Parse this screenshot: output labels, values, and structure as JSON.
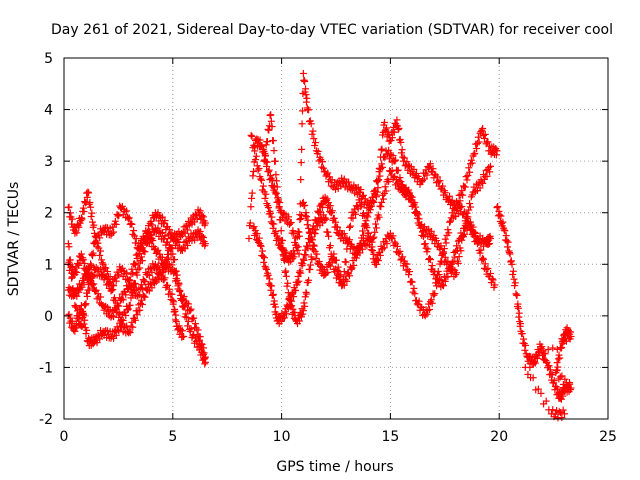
{
  "chart_data": {
    "type": "scatter",
    "title": "Day 261 of 2021, Sidereal Day-to-day VTEC variation (SDTVAR) for receiver cool",
    "xlabel": "GPS time / hours",
    "ylabel": "SDTVAR / TECUs",
    "xlim": [
      0,
      25
    ],
    "ylim": [
      -2,
      5
    ],
    "xticks": [
      "0",
      "5",
      "10",
      "15",
      "20",
      "25"
    ],
    "yticks": [
      "-2",
      "-1",
      "0",
      "1",
      "2",
      "3",
      "4",
      "5"
    ],
    "grid": true,
    "marker": "plus",
    "color": "#ff0000",
    "series": [
      {
        "name": "track-1",
        "points": [
          [
            0.2,
            2.1
          ],
          [
            0.5,
            1.6
          ],
          [
            0.8,
            1.9
          ],
          [
            1.1,
            2.4
          ],
          [
            1.4,
            1.6
          ],
          [
            1.8,
            1.0
          ],
          [
            2.2,
            0.6
          ],
          [
            2.6,
            0.9
          ],
          [
            3.0,
            0.7
          ],
          [
            3.4,
            1.2
          ],
          [
            3.8,
            1.6
          ],
          [
            4.2,
            1.3
          ],
          [
            4.6,
            1.0
          ],
          [
            5.0,
            0.9
          ],
          [
            5.4,
            0.4
          ],
          [
            5.8,
            0.1
          ],
          [
            6.2,
            -0.4
          ],
          [
            6.5,
            -0.8
          ]
        ]
      },
      {
        "name": "track-2",
        "points": [
          [
            0.2,
            1.4
          ],
          [
            0.5,
            0.2
          ],
          [
            0.8,
            -0.2
          ],
          [
            1.1,
            0.5
          ],
          [
            1.4,
            0.9
          ],
          [
            1.8,
            0.8
          ],
          [
            2.2,
            0.5
          ],
          [
            2.6,
            -0.1
          ],
          [
            3.0,
            0.2
          ],
          [
            3.4,
            0.9
          ],
          [
            3.8,
            1.4
          ],
          [
            4.2,
            1.7
          ],
          [
            4.6,
            1.5
          ],
          [
            5.0,
            1.2
          ],
          [
            5.4,
            0.3
          ],
          [
            5.8,
            -0.3
          ],
          [
            6.2,
            -0.6
          ],
          [
            6.5,
            -0.9
          ]
        ]
      },
      {
        "name": "track-3",
        "points": [
          [
            0.2,
            0.0
          ],
          [
            0.5,
            -0.3
          ],
          [
            0.8,
            0.2
          ],
          [
            1.1,
            -0.5
          ],
          [
            1.4,
            -0.5
          ],
          [
            1.8,
            -0.3
          ],
          [
            2.2,
            -0.4
          ],
          [
            2.6,
            -0.2
          ],
          [
            3.0,
            -0.3
          ],
          [
            3.4,
            0.1
          ],
          [
            3.8,
            0.5
          ],
          [
            4.2,
            0.7
          ],
          [
            4.6,
            0.9
          ],
          [
            5.0,
            1.5
          ],
          [
            5.4,
            1.3
          ],
          [
            5.8,
            1.5
          ],
          [
            6.2,
            1.6
          ],
          [
            6.5,
            1.4
          ]
        ]
      },
      {
        "name": "track-4",
        "points": [
          [
            0.2,
            1.0
          ],
          [
            0.5,
            0.8
          ],
          [
            0.8,
            1.2
          ],
          [
            1.1,
            0.7
          ],
          [
            1.4,
            1.4
          ],
          [
            1.8,
            1.7
          ],
          [
            2.2,
            1.6
          ],
          [
            2.6,
            2.1
          ],
          [
            3.0,
            1.9
          ],
          [
            3.4,
            1.3
          ],
          [
            3.8,
            1.6
          ],
          [
            4.2,
            2.0
          ],
          [
            4.6,
            1.8
          ],
          [
            5.0,
            1.5
          ],
          [
            5.4,
            1.6
          ],
          [
            5.8,
            1.8
          ],
          [
            6.2,
            2.0
          ],
          [
            6.5,
            1.8
          ]
        ]
      },
      {
        "name": "track-5",
        "points": [
          [
            0.2,
            0.5
          ],
          [
            0.5,
            0.4
          ],
          [
            0.8,
            0.6
          ],
          [
            1.1,
            0.9
          ],
          [
            1.4,
            0.5
          ],
          [
            1.8,
            0.2
          ],
          [
            2.2,
            0.0
          ],
          [
            2.6,
            0.3
          ],
          [
            3.0,
            0.6
          ],
          [
            3.4,
            0.4
          ],
          [
            3.8,
            0.8
          ],
          [
            4.2,
            1.0
          ],
          [
            4.6,
            0.7
          ],
          [
            5.0,
            0.3
          ],
          [
            5.2,
            -0.2
          ],
          [
            5.5,
            -0.4
          ]
        ]
      },
      {
        "name": "track-6",
        "points": [
          [
            8.5,
            1.5
          ],
          [
            8.8,
            3.4
          ],
          [
            9.1,
            3.3
          ],
          [
            9.4,
            2.8
          ],
          [
            9.7,
            2.4
          ],
          [
            10.0,
            2.0
          ],
          [
            10.4,
            1.8
          ],
          [
            10.8,
            1.2
          ],
          [
            11.0,
            4.7
          ],
          [
            11.2,
            4.0
          ],
          [
            11.6,
            3.2
          ],
          [
            12.0,
            2.8
          ],
          [
            12.4,
            2.5
          ],
          [
            12.8,
            2.6
          ],
          [
            13.2,
            2.5
          ],
          [
            13.6,
            2.4
          ],
          [
            14.0,
            2.1
          ],
          [
            14.4,
            2.4
          ],
          [
            14.7,
            3.7
          ],
          [
            15.0,
            3.4
          ],
          [
            15.3,
            3.8
          ],
          [
            15.6,
            3.0
          ],
          [
            16.0,
            2.8
          ],
          [
            16.4,
            2.6
          ],
          [
            16.8,
            2.9
          ],
          [
            17.2,
            2.6
          ],
          [
            17.6,
            2.3
          ],
          [
            18.0,
            2.1
          ],
          [
            18.4,
            2.5
          ],
          [
            18.8,
            3.1
          ],
          [
            19.2,
            3.6
          ],
          [
            19.6,
            3.2
          ],
          [
            19.9,
            3.2
          ]
        ]
      },
      {
        "name": "track-7",
        "points": [
          [
            8.6,
            3.5
          ],
          [
            9.0,
            2.7
          ],
          [
            9.4,
            2.1
          ],
          [
            9.7,
            1.6
          ],
          [
            10.0,
            1.3
          ],
          [
            10.3,
            1.1
          ],
          [
            10.6,
            1.2
          ],
          [
            11.0,
            2.2
          ],
          [
            11.3,
            1.6
          ],
          [
            11.7,
            1.0
          ],
          [
            12.0,
            0.8
          ],
          [
            12.4,
            1.2
          ],
          [
            12.8,
            0.6
          ],
          [
            13.2,
            0.9
          ],
          [
            13.6,
            1.4
          ],
          [
            14.0,
            2.0
          ],
          [
            14.4,
            2.6
          ],
          [
            14.8,
            3.2
          ],
          [
            15.2,
            3.0
          ],
          [
            15.6,
            2.4
          ],
          [
            16.0,
            2.3
          ],
          [
            16.4,
            1.7
          ],
          [
            16.8,
            1.6
          ],
          [
            17.2,
            1.4
          ],
          [
            17.6,
            1.0
          ],
          [
            18.0,
            0.8
          ],
          [
            18.4,
            1.7
          ],
          [
            18.8,
            2.4
          ],
          [
            19.2,
            2.6
          ],
          [
            19.6,
            2.9
          ]
        ]
      },
      {
        "name": "track-8",
        "points": [
          [
            8.7,
            1.7
          ],
          [
            9.0,
            1.4
          ],
          [
            9.3,
            0.9
          ],
          [
            9.6,
            0.4
          ],
          [
            9.8,
            -0.1
          ],
          [
            10.1,
            0.0
          ],
          [
            10.4,
            0.3
          ],
          [
            10.7,
            0.6
          ],
          [
            11.0,
            1.1
          ],
          [
            11.3,
            1.5
          ],
          [
            11.7,
            2.0
          ],
          [
            12.0,
            2.3
          ],
          [
            12.3,
            2.0
          ],
          [
            12.6,
            1.6
          ],
          [
            13.0,
            1.5
          ],
          [
            13.4,
            1.2
          ],
          [
            13.8,
            1.4
          ],
          [
            14.2,
            1.5
          ],
          [
            14.6,
            2.2
          ],
          [
            15.0,
            2.8
          ],
          [
            15.4,
            2.5
          ],
          [
            15.8,
            2.4
          ],
          [
            16.2,
            2.0
          ],
          [
            16.6,
            1.4
          ],
          [
            17.0,
            0.8
          ],
          [
            17.4,
            0.6
          ],
          [
            17.8,
            1.0
          ],
          [
            18.2,
            1.5
          ],
          [
            18.6,
            1.8
          ],
          [
            19.0,
            1.5
          ],
          [
            19.4,
            1.4
          ],
          [
            19.6,
            1.5
          ]
        ]
      },
      {
        "name": "track-9",
        "points": [
          [
            9.2,
            3.0
          ],
          [
            9.5,
            3.9
          ],
          [
            9.8,
            2.5
          ],
          [
            10.1,
            1.1
          ],
          [
            10.4,
            0.2
          ],
          [
            10.7,
            -0.1
          ],
          [
            11.0,
            0.1
          ],
          [
            11.3,
            0.9
          ],
          [
            11.6,
            1.8
          ],
          [
            12.0,
            1.9
          ],
          [
            12.4,
            0.9
          ],
          [
            12.8,
            0.6
          ],
          [
            13.2,
            1.9
          ],
          [
            13.6,
            2.2
          ],
          [
            14.0,
            1.6
          ],
          [
            14.3,
            1.0
          ],
          [
            14.6,
            1.3
          ],
          [
            15.0,
            1.6
          ],
          [
            15.4,
            1.2
          ],
          [
            15.8,
            0.9
          ],
          [
            16.2,
            0.3
          ],
          [
            16.6,
            0.0
          ],
          [
            17.0,
            0.4
          ],
          [
            17.4,
            1.2
          ],
          [
            17.8,
            1.9
          ],
          [
            18.2,
            2.1
          ],
          [
            18.6,
            1.8
          ],
          [
            19.0,
            1.4
          ],
          [
            19.4,
            0.9
          ],
          [
            19.8,
            0.6
          ]
        ]
      },
      {
        "name": "track-10",
        "points": [
          [
            19.9,
            2.1
          ],
          [
            20.2,
            1.7
          ],
          [
            20.5,
            1.2
          ],
          [
            20.8,
            0.4
          ],
          [
            21.0,
            -0.3
          ],
          [
            21.3,
            -0.8
          ],
          [
            21.6,
            -0.9
          ],
          [
            21.9,
            -0.6
          ],
          [
            22.2,
            -0.9
          ],
          [
            22.5,
            -1.3
          ],
          [
            22.8,
            -1.6
          ],
          [
            23.0,
            -1.4
          ],
          [
            23.3,
            -1.4
          ],
          [
            22.6,
            -1.1
          ],
          [
            22.9,
            -0.5
          ],
          [
            23.1,
            -0.3
          ],
          [
            23.3,
            -0.4
          ],
          [
            21.2,
            -1.0
          ],
          [
            22.4,
            -1.9
          ],
          [
            23.0,
            -1.9
          ]
        ]
      }
    ]
  }
}
